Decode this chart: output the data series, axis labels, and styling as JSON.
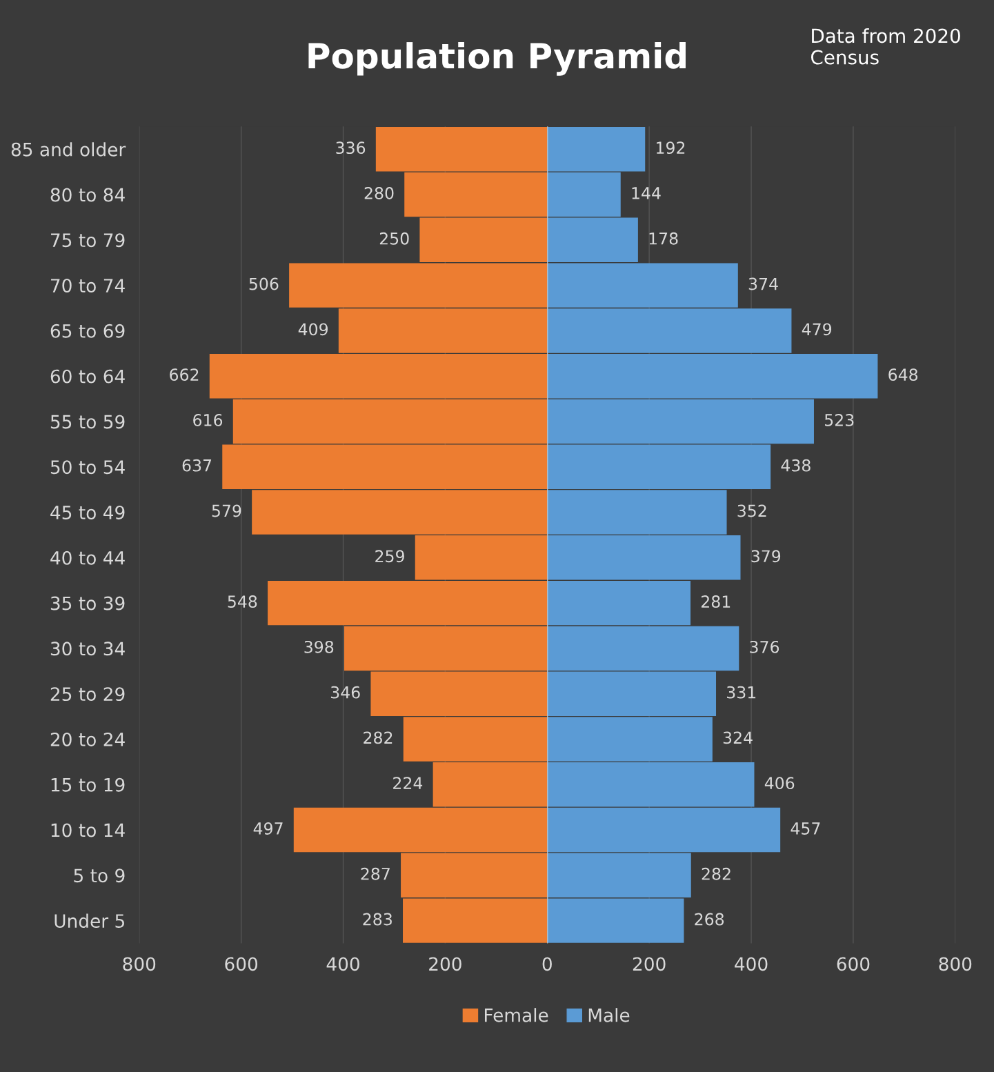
{
  "chart_data": [
    {
      "type": "bar",
      "orientation": "horizontal",
      "title": "Population Pyramid",
      "categories": [
        "85 and older",
        "80 to 84",
        "75 to 79",
        "70 to 74",
        "65 to 69",
        "60 to 64",
        "55 to 59",
        "50 to 54",
        "45 to 49",
        "40 to 44",
        "35 to 39",
        "30 to 34",
        "25 to 29",
        "20 to 24",
        "15 to 19",
        "10 to 14",
        "5 to 9",
        "Under 5"
      ],
      "series": [
        {
          "name": "Female",
          "color": "#ed7d31",
          "values": [
            336,
            280,
            250,
            506,
            409,
            662,
            616,
            637,
            579,
            259,
            548,
            398,
            346,
            282,
            224,
            497,
            287,
            283
          ]
        }
      ],
      "xlim": [
        800,
        0
      ],
      "xticks": [
        800,
        600,
        400,
        200
      ],
      "data_labels": true,
      "grid": "x",
      "legend": "bottom"
    },
    {
      "type": "bar",
      "orientation": "horizontal",
      "annotations": [
        "Data from 2020 Census"
      ],
      "categories": [
        null,
        null,
        null,
        null,
        null,
        null,
        null,
        null,
        null,
        null,
        null,
        null,
        null,
        null,
        null,
        null,
        null,
        null
      ],
      "series": [
        {
          "name": "Male",
          "color": "#5b9bd5",
          "values": [
            192,
            144,
            178,
            374,
            479,
            648,
            523,
            438,
            352,
            379,
            281,
            376,
            331,
            324,
            406,
            457,
            282,
            268
          ]
        }
      ],
      "xlim": [
        0,
        800
      ],
      "xticks": [
        0,
        200,
        400,
        600,
        800
      ],
      "data_labels": true,
      "grid": "x",
      "legend": "bottom",
      "tick_labels": "x"
    }
  ]
}
